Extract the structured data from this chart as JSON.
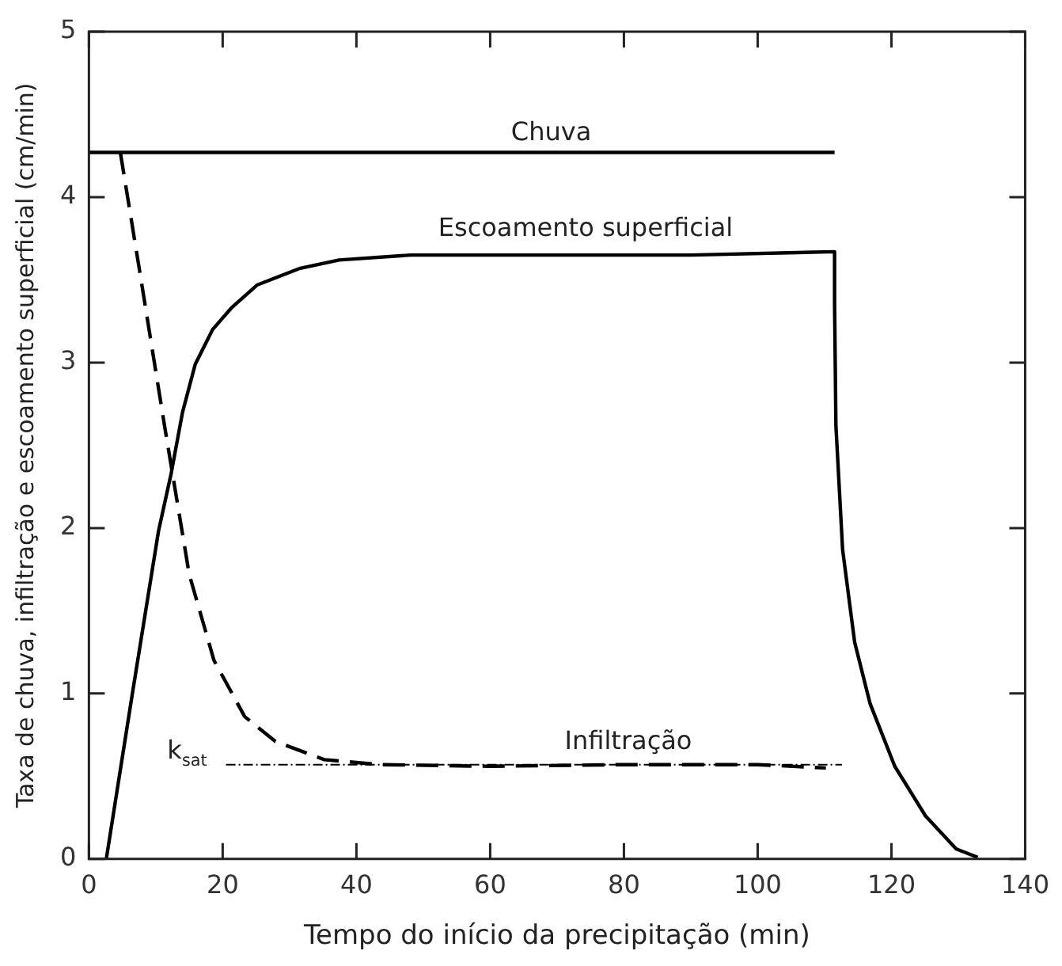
{
  "chart_data": {
    "type": "line",
    "xlabel": "Tempo do início da precipitação (min)",
    "ylabel": "Taxa de chuva, infiltração e escoamento superficial (cm/min)",
    "xlim": [
      0,
      140
    ],
    "xticks": [
      0,
      20,
      40,
      60,
      80,
      100,
      120,
      140
    ],
    "ylim": [
      0,
      5
    ],
    "yticks": [
      0,
      1,
      2,
      3,
      4,
      5
    ],
    "grid": false,
    "legend": false,
    "marker": "none",
    "series": [
      {
        "name": "Chuva",
        "color": "#000000",
        "line_style": "solid",
        "x": [
          0,
          111.5
        ],
        "values": [
          4.27,
          4.27
        ]
      },
      {
        "name": "Escoamento superficial",
        "color": "#000000",
        "line_style": "solid",
        "x": [
          2.6,
          6.5,
          10.4,
          12.3,
          14,
          15.9,
          18.5,
          21.3,
          25.2,
          31.6,
          37.4,
          48.1,
          70,
          90,
          111.5,
          111.5,
          111.7,
          112.7,
          114.5,
          116.8,
          120.5,
          125.1,
          129.7,
          132.9
        ],
        "values": [
          0,
          1,
          1.98,
          2.33,
          2.7,
          2.99,
          3.2,
          3.33,
          3.47,
          3.57,
          3.62,
          3.65,
          3.65,
          3.65,
          3.67,
          3.36,
          2.62,
          1.87,
          1.31,
          0.94,
          0.56,
          0.26,
          0.06,
          0.01
        ]
      },
      {
        "name": "Infiltração",
        "color": "#000000",
        "line_style": "dashed",
        "x": [
          4.7,
          7.6,
          11.3,
          15,
          18.7,
          23.3,
          27.9,
          35.2,
          43.5,
          60,
          80,
          100,
          110.2
        ],
        "values": [
          4.27,
          3.55,
          2.62,
          1.72,
          1.2,
          0.86,
          0.71,
          0.6,
          0.57,
          0.56,
          0.57,
          0.57,
          0.55
        ]
      },
      {
        "name": "k$_{sat}$",
        "color": "#000000",
        "line_style": "dotted",
        "x": [
          20.5,
          112.6
        ],
        "values": [
          0.57,
          0.57
        ]
      }
    ]
  }
}
